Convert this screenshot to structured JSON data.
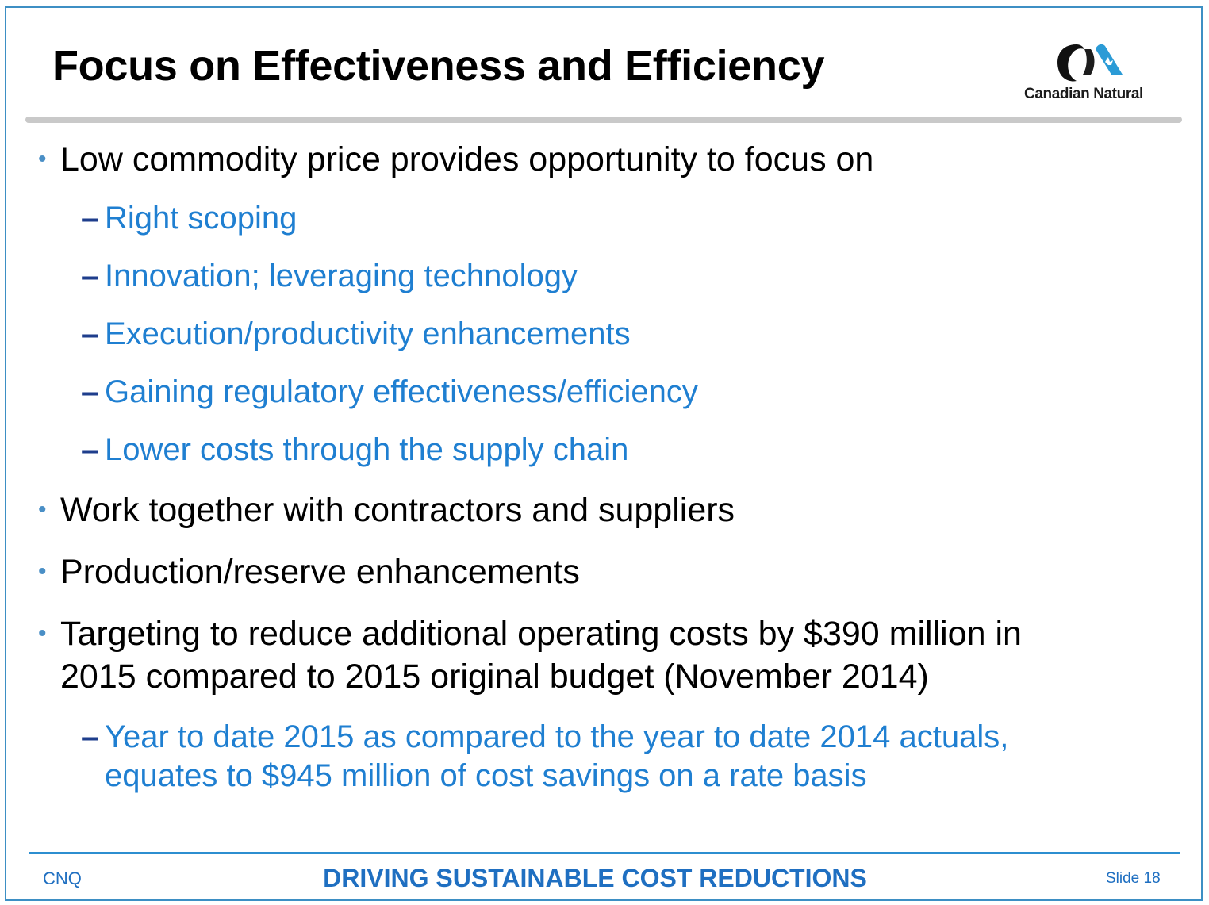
{
  "slide": {
    "title": "Focus on Effectiveness and Efficiency",
    "logo_text": "Canadian Natural",
    "bullets": [
      "Low commodity price provides opportunity to focus on",
      "Work together with contractors and suppliers",
      "Production/reserve enhancements",
      "Targeting to reduce additional operating costs by $390 million in",
      "2015 compared to 2015 original budget (November 2014)"
    ],
    "sub_bullets": [
      "Right scoping",
      "Innovation; leveraging technology",
      "Execution/productivity enhancements",
      "Gaining regulatory effectiveness/efficiency",
      "Lower costs through the supply chain",
      "Year to date 2015 as compared to the year to date 2014 actuals,",
      "equates to $945 million of cost savings on a rate basis"
    ],
    "bullet_glyph": "•",
    "dash_glyph": "–"
  },
  "footer": {
    "left": "CNQ",
    "center": "DRIVING SUSTAINABLE COST REDUCTIONS",
    "right": "Slide 18"
  },
  "colors": {
    "title": "#000000",
    "sub_bullet_text": "#1f7fd1",
    "footer_text": "#1f6fc1",
    "frame": "#3d8fc4"
  }
}
